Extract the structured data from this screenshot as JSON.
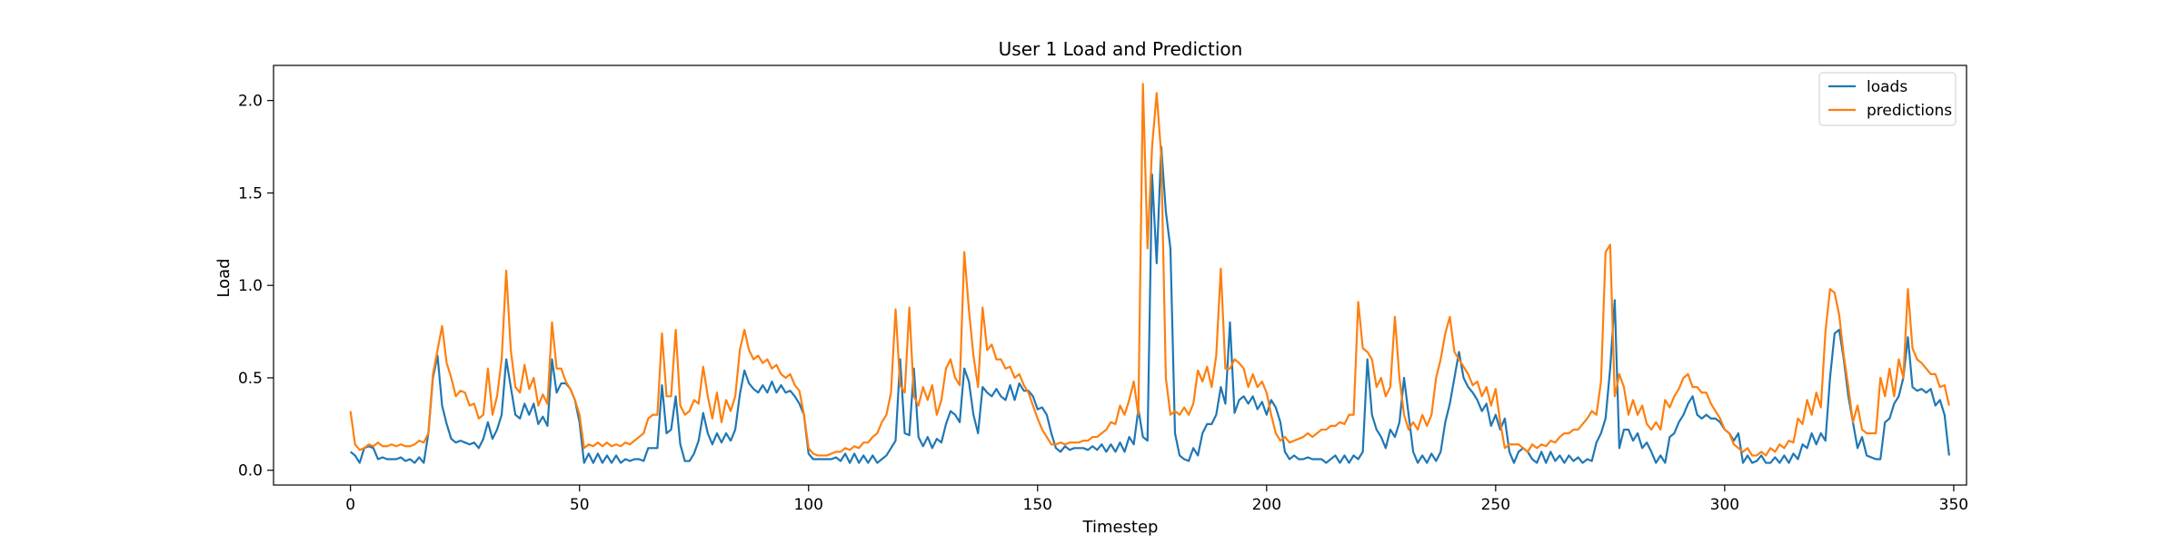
{
  "chart_data": {
    "type": "line",
    "title": "User 1 Load and Prediction",
    "xlabel": "Timestep",
    "ylabel": "Load",
    "xlim": [
      -16.8,
      352.8
    ],
    "ylim": [
      -0.08,
      2.19
    ],
    "xticks": [
      0,
      50,
      100,
      150,
      200,
      250,
      300,
      350
    ],
    "yticks": [
      0.0,
      0.5,
      1.0,
      1.5,
      2.0
    ],
    "grid": false,
    "legend_position": "top-right",
    "colors": {
      "loads": "#1f77b4",
      "predictions": "#ff7f0e"
    },
    "series": [
      {
        "name": "loads",
        "values": [
          0.1,
          0.08,
          0.04,
          0.12,
          0.13,
          0.12,
          0.06,
          0.07,
          0.06,
          0.06,
          0.06,
          0.07,
          0.05,
          0.06,
          0.04,
          0.07,
          0.04,
          0.2,
          0.5,
          0.62,
          0.35,
          0.25,
          0.17,
          0.15,
          0.16,
          0.15,
          0.14,
          0.15,
          0.12,
          0.17,
          0.26,
          0.17,
          0.22,
          0.3,
          0.6,
          0.45,
          0.3,
          0.28,
          0.36,
          0.3,
          0.36,
          0.25,
          0.29,
          0.24,
          0.6,
          0.42,
          0.47,
          0.47,
          0.44,
          0.38,
          0.26,
          0.04,
          0.09,
          0.04,
          0.09,
          0.04,
          0.08,
          0.04,
          0.08,
          0.04,
          0.06,
          0.05,
          0.06,
          0.06,
          0.05,
          0.12,
          0.12,
          0.12,
          0.46,
          0.2,
          0.22,
          0.4,
          0.14,
          0.05,
          0.05,
          0.09,
          0.16,
          0.31,
          0.2,
          0.14,
          0.2,
          0.15,
          0.2,
          0.16,
          0.22,
          0.41,
          0.54,
          0.47,
          0.44,
          0.42,
          0.46,
          0.42,
          0.48,
          0.42,
          0.46,
          0.42,
          0.43,
          0.4,
          0.36,
          0.3,
          0.09,
          0.06,
          0.06,
          0.06,
          0.06,
          0.06,
          0.07,
          0.05,
          0.09,
          0.04,
          0.09,
          0.04,
          0.08,
          0.04,
          0.08,
          0.04,
          0.06,
          0.08,
          0.12,
          0.16,
          0.6,
          0.2,
          0.19,
          0.55,
          0.18,
          0.13,
          0.18,
          0.12,
          0.17,
          0.15,
          0.25,
          0.32,
          0.3,
          0.26,
          0.55,
          0.48,
          0.3,
          0.2,
          0.45,
          0.42,
          0.4,
          0.44,
          0.4,
          0.38,
          0.46,
          0.38,
          0.47,
          0.43,
          0.43,
          0.4,
          0.33,
          0.34,
          0.3,
          0.2,
          0.12,
          0.1,
          0.13,
          0.11,
          0.12,
          0.12,
          0.12,
          0.11,
          0.13,
          0.11,
          0.14,
          0.1,
          0.14,
          0.1,
          0.15,
          0.1,
          0.18,
          0.14,
          0.33,
          0.18,
          0.16,
          1.6,
          1.12,
          1.75,
          1.4,
          1.2,
          0.2,
          0.08,
          0.06,
          0.05,
          0.12,
          0.08,
          0.2,
          0.25,
          0.25,
          0.3,
          0.45,
          0.36,
          0.8,
          0.31,
          0.38,
          0.4,
          0.36,
          0.4,
          0.33,
          0.37,
          0.3,
          0.38,
          0.34,
          0.26,
          0.1,
          0.06,
          0.08,
          0.06,
          0.06,
          0.07,
          0.06,
          0.06,
          0.06,
          0.04,
          0.06,
          0.08,
          0.04,
          0.08,
          0.04,
          0.08,
          0.06,
          0.1,
          0.6,
          0.3,
          0.22,
          0.18,
          0.12,
          0.22,
          0.18,
          0.26,
          0.5,
          0.3,
          0.1,
          0.04,
          0.08,
          0.04,
          0.09,
          0.05,
          0.1,
          0.26,
          0.36,
          0.5,
          0.64,
          0.5,
          0.45,
          0.42,
          0.38,
          0.32,
          0.36,
          0.24,
          0.3,
          0.22,
          0.28,
          0.1,
          0.04,
          0.1,
          0.12,
          0.1,
          0.06,
          0.04,
          0.1,
          0.04,
          0.1,
          0.05,
          0.08,
          0.04,
          0.08,
          0.05,
          0.07,
          0.04,
          0.06,
          0.05,
          0.15,
          0.2,
          0.28,
          0.55,
          0.92,
          0.12,
          0.22,
          0.22,
          0.16,
          0.2,
          0.12,
          0.15,
          0.1,
          0.04,
          0.08,
          0.04,
          0.18,
          0.2,
          0.26,
          0.3,
          0.36,
          0.4,
          0.3,
          0.28,
          0.3,
          0.28,
          0.28,
          0.26,
          0.22,
          0.2,
          0.16,
          0.2,
          0.04,
          0.08,
          0.04,
          0.05,
          0.08,
          0.04,
          0.04,
          0.07,
          0.04,
          0.08,
          0.04,
          0.09,
          0.06,
          0.14,
          0.12,
          0.2,
          0.14,
          0.2,
          0.16,
          0.5,
          0.74,
          0.76,
          0.6,
          0.4,
          0.26,
          0.12,
          0.18,
          0.08,
          0.07,
          0.06,
          0.06,
          0.26,
          0.28,
          0.36,
          0.4,
          0.5,
          0.72,
          0.45,
          0.43,
          0.44,
          0.42,
          0.44,
          0.35,
          0.38,
          0.3,
          0.08
        ]
      },
      {
        "name": "predictions",
        "values": [
          0.32,
          0.14,
          0.11,
          0.12,
          0.14,
          0.13,
          0.15,
          0.13,
          0.13,
          0.14,
          0.13,
          0.14,
          0.13,
          0.13,
          0.14,
          0.16,
          0.15,
          0.2,
          0.52,
          0.65,
          0.78,
          0.58,
          0.5,
          0.4,
          0.43,
          0.42,
          0.35,
          0.36,
          0.28,
          0.3,
          0.55,
          0.3,
          0.4,
          0.6,
          1.08,
          0.65,
          0.45,
          0.42,
          0.57,
          0.44,
          0.5,
          0.35,
          0.41,
          0.36,
          0.8,
          0.55,
          0.55,
          0.48,
          0.44,
          0.38,
          0.3,
          0.12,
          0.14,
          0.13,
          0.15,
          0.13,
          0.15,
          0.13,
          0.14,
          0.13,
          0.15,
          0.14,
          0.16,
          0.18,
          0.2,
          0.28,
          0.3,
          0.3,
          0.74,
          0.4,
          0.4,
          0.76,
          0.35,
          0.3,
          0.32,
          0.38,
          0.36,
          0.56,
          0.4,
          0.28,
          0.42,
          0.26,
          0.38,
          0.32,
          0.4,
          0.65,
          0.76,
          0.65,
          0.6,
          0.62,
          0.58,
          0.6,
          0.55,
          0.57,
          0.52,
          0.5,
          0.52,
          0.46,
          0.43,
          0.3,
          0.12,
          0.09,
          0.08,
          0.08,
          0.08,
          0.09,
          0.1,
          0.1,
          0.12,
          0.11,
          0.13,
          0.12,
          0.15,
          0.15,
          0.18,
          0.2,
          0.26,
          0.3,
          0.42,
          0.87,
          0.46,
          0.42,
          0.88,
          0.4,
          0.35,
          0.45,
          0.38,
          0.46,
          0.3,
          0.38,
          0.55,
          0.6,
          0.5,
          0.46,
          1.18,
          0.87,
          0.62,
          0.45,
          0.88,
          0.65,
          0.68,
          0.6,
          0.6,
          0.55,
          0.56,
          0.5,
          0.52,
          0.46,
          0.42,
          0.35,
          0.28,
          0.22,
          0.18,
          0.14,
          0.14,
          0.15,
          0.14,
          0.15,
          0.15,
          0.15,
          0.16,
          0.16,
          0.18,
          0.18,
          0.2,
          0.22,
          0.26,
          0.25,
          0.35,
          0.3,
          0.38,
          0.48,
          0.3,
          2.09,
          1.2,
          1.75,
          2.04,
          1.7,
          0.5,
          0.3,
          0.32,
          0.3,
          0.34,
          0.3,
          0.36,
          0.54,
          0.48,
          0.56,
          0.45,
          0.62,
          1.09,
          0.55,
          0.55,
          0.6,
          0.58,
          0.55,
          0.45,
          0.52,
          0.45,
          0.48,
          0.42,
          0.3,
          0.2,
          0.16,
          0.18,
          0.15,
          0.16,
          0.17,
          0.18,
          0.2,
          0.18,
          0.2,
          0.22,
          0.22,
          0.24,
          0.24,
          0.26,
          0.25,
          0.3,
          0.3,
          0.91,
          0.66,
          0.64,
          0.6,
          0.45,
          0.5,
          0.4,
          0.45,
          0.83,
          0.5,
          0.3,
          0.22,
          0.26,
          0.22,
          0.3,
          0.24,
          0.3,
          0.5,
          0.6,
          0.74,
          0.83,
          0.64,
          0.6,
          0.56,
          0.52,
          0.46,
          0.48,
          0.4,
          0.45,
          0.35,
          0.44,
          0.26,
          0.12,
          0.14,
          0.14,
          0.14,
          0.12,
          0.1,
          0.14,
          0.12,
          0.14,
          0.13,
          0.16,
          0.15,
          0.18,
          0.2,
          0.2,
          0.22,
          0.22,
          0.25,
          0.28,
          0.32,
          0.3,
          0.48,
          1.18,
          1.22,
          0.4,
          0.52,
          0.45,
          0.3,
          0.38,
          0.3,
          0.35,
          0.25,
          0.22,
          0.26,
          0.22,
          0.38,
          0.34,
          0.4,
          0.44,
          0.5,
          0.52,
          0.45,
          0.45,
          0.42,
          0.42,
          0.36,
          0.32,
          0.28,
          0.22,
          0.2,
          0.14,
          0.12,
          0.1,
          0.12,
          0.08,
          0.08,
          0.1,
          0.08,
          0.12,
          0.1,
          0.14,
          0.12,
          0.16,
          0.15,
          0.28,
          0.25,
          0.38,
          0.3,
          0.42,
          0.34,
          0.75,
          0.98,
          0.96,
          0.84,
          0.62,
          0.45,
          0.26,
          0.35,
          0.22,
          0.2,
          0.2,
          0.2,
          0.5,
          0.4,
          0.55,
          0.4,
          0.6,
          0.5,
          0.98,
          0.66,
          0.6,
          0.58,
          0.55,
          0.52,
          0.52,
          0.45,
          0.46,
          0.35
        ]
      }
    ]
  }
}
